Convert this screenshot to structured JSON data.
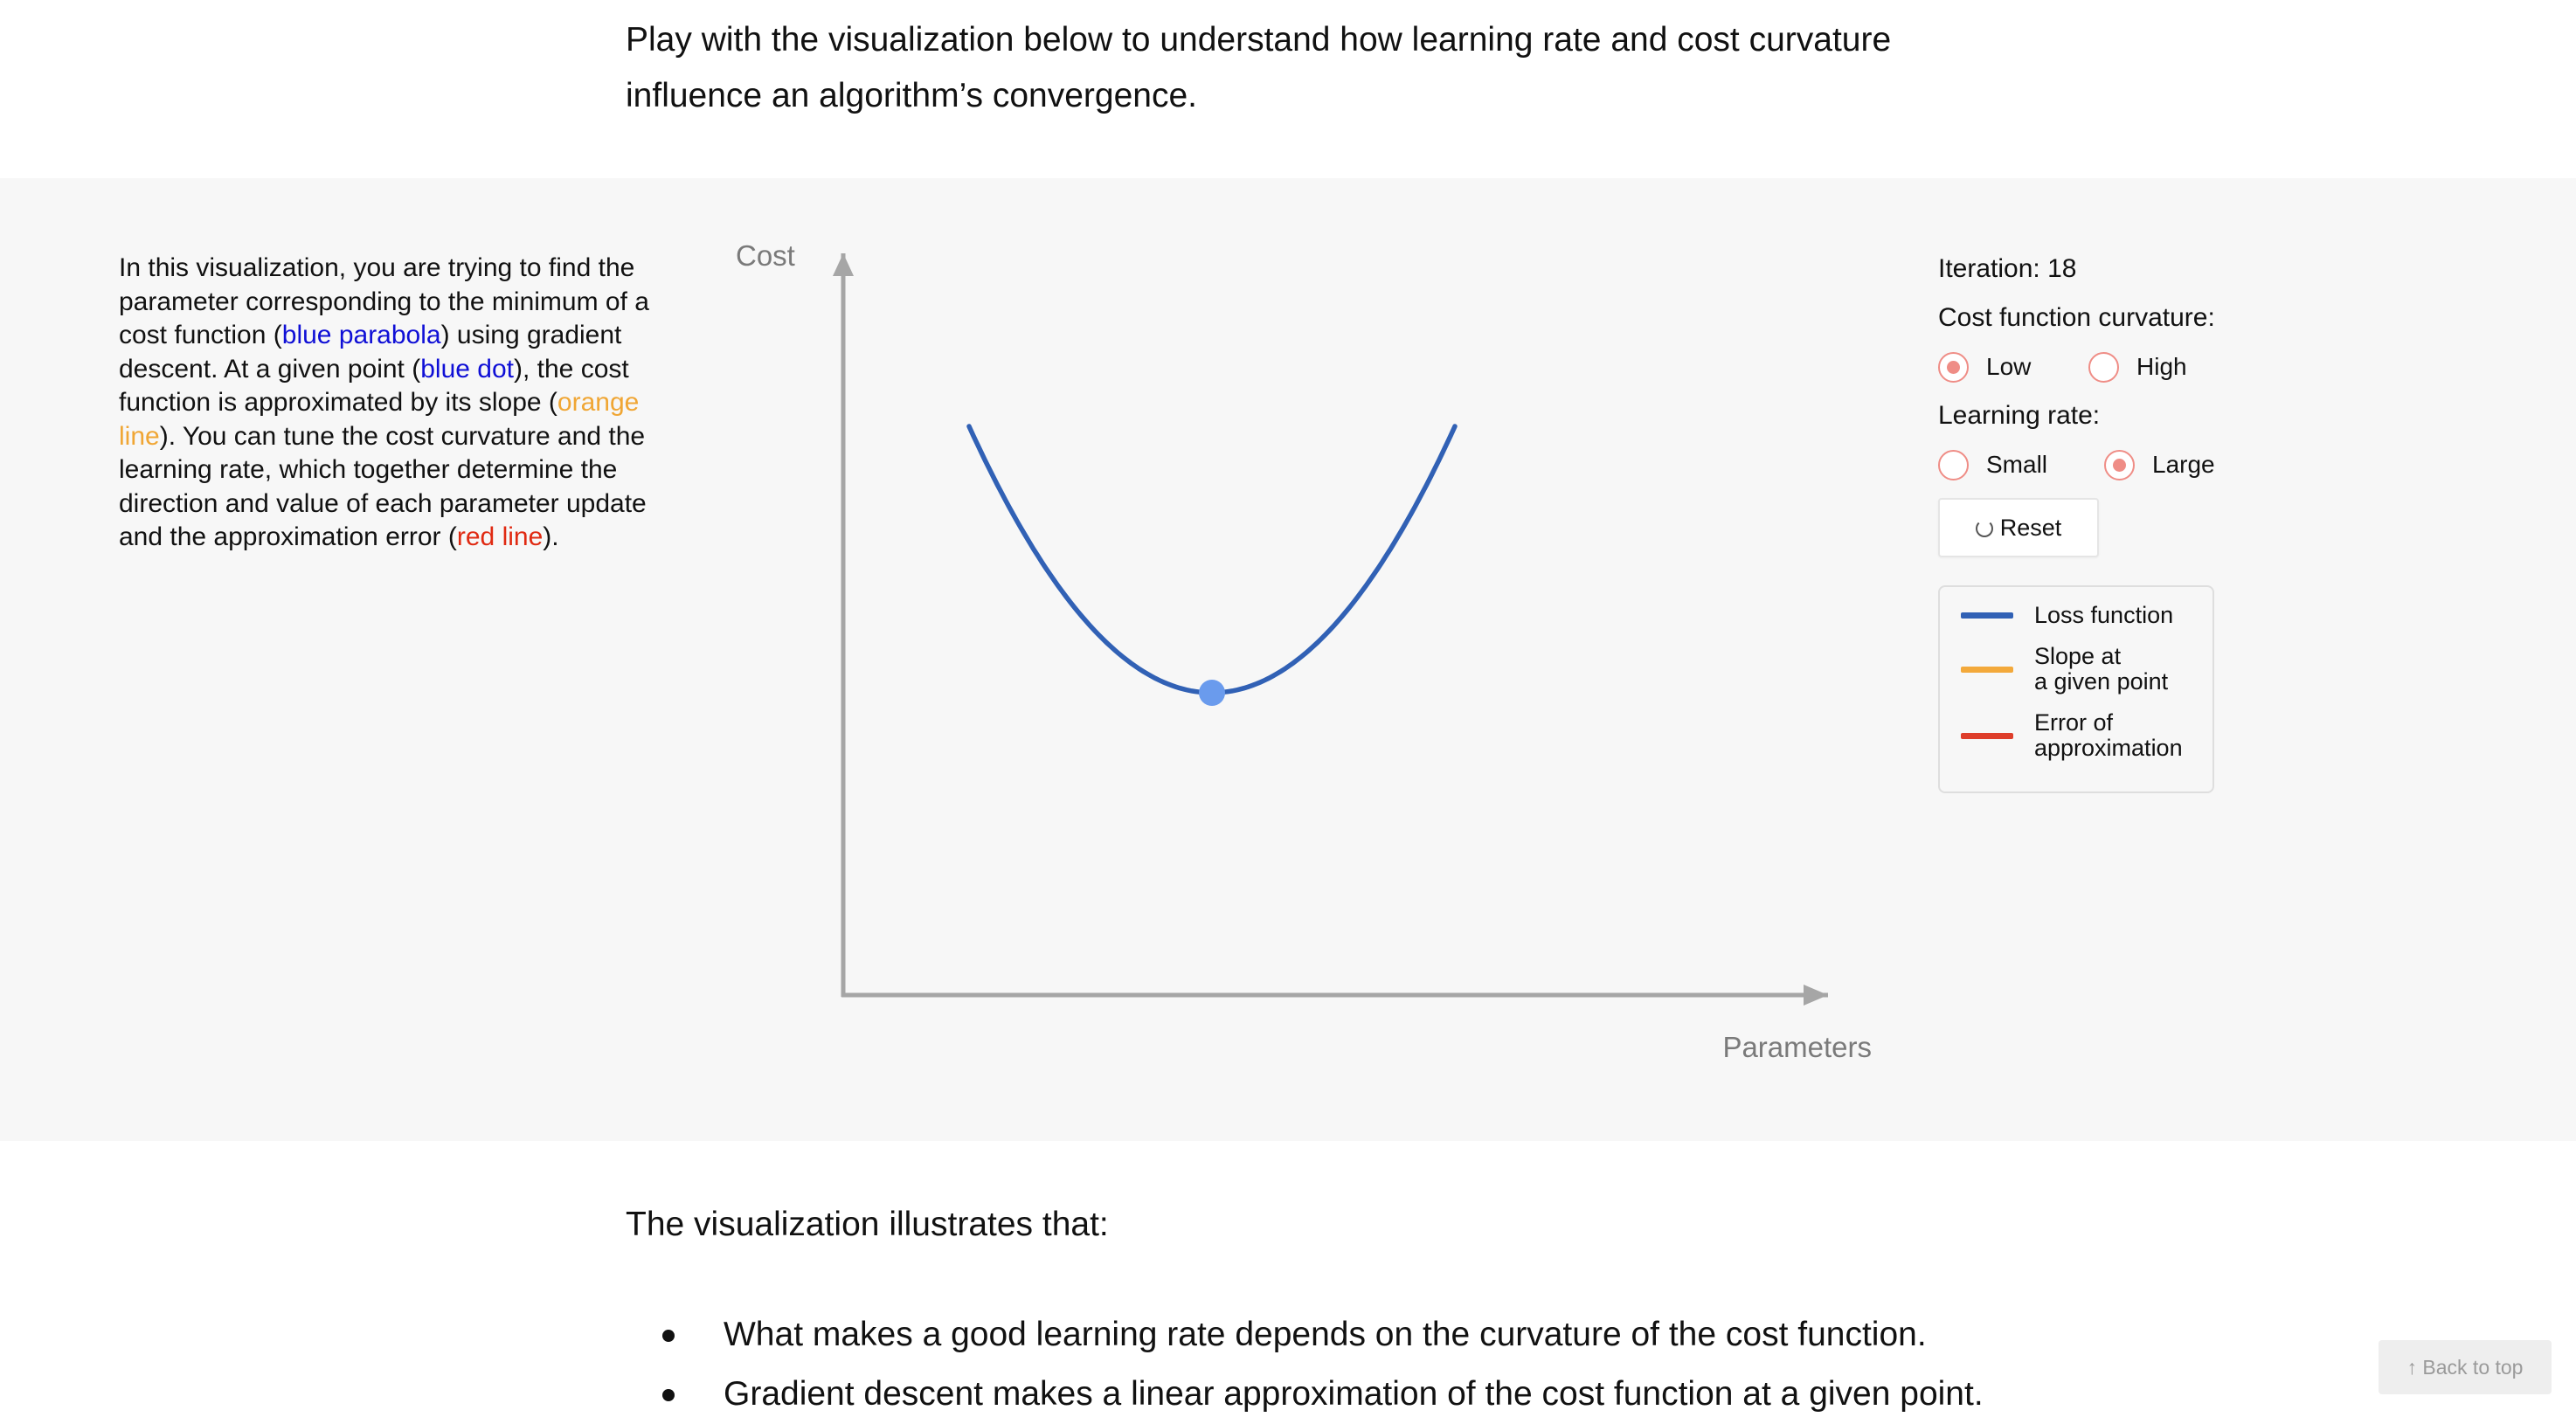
{
  "intro": {
    "line1": "Play with the visualization below to understand how learning rate and cost curvature",
    "line2": "influence an algorithm’s convergence."
  },
  "description": {
    "p1": "In this visualization, you are trying to find the parameter corresponding to the minimum of a cost function (",
    "blue_parabola": "blue parabola",
    "p2": ") using gradient descent. At a given point (",
    "blue_dot": "blue dot",
    "p3": "), the cost function is approximated by its slope (",
    "orange_line": "orange line",
    "p4": "). You can tune the cost curvature and the learning rate, which together determine the direction and value of each parameter update and the approximation error (",
    "red_line": "red line",
    "p5": ")."
  },
  "chart_data": {
    "type": "line",
    "xlabel": "Parameters",
    "ylabel": "Cost",
    "series": [
      {
        "name": "Loss function",
        "x": [
          -1.0,
          -0.75,
          -0.5,
          -0.25,
          0.0,
          0.25,
          0.5,
          0.75,
          1.0
        ],
        "y": [
          1.0,
          0.5625,
          0.25,
          0.0625,
          0.0,
          0.0625,
          0.25,
          0.5625,
          1.0
        ]
      }
    ],
    "current_point": {
      "x": 0.0,
      "y": 0.0
    }
  },
  "controls": {
    "iteration_label": "Iteration: 18",
    "curvature_label": "Cost function curvature:",
    "curvature_options": [
      {
        "label": "Low",
        "checked": true
      },
      {
        "label": "High",
        "checked": false
      }
    ],
    "learning_rate_label": "Learning rate:",
    "learning_rate_options": [
      {
        "label": "Small",
        "checked": false
      },
      {
        "label": "Large",
        "checked": true
      }
    ],
    "reset_label": "Reset",
    "reset_icon": "refresh-icon"
  },
  "legend": {
    "items": [
      {
        "line1": "Loss function",
        "line2": "",
        "color": "#3161b5"
      },
      {
        "line1": "Slope at",
        "line2": "a given point",
        "color": "#f3a93b"
      },
      {
        "line1": "Error of",
        "line2": "approximation",
        "color": "#de3e2b"
      }
    ]
  },
  "colors": {
    "loss_curve": "#3161b5",
    "current_point": "#6a9bed",
    "axis": "#a6a6a6",
    "radio_accent": "#ef8d86",
    "band_background": "#f7f7f7"
  },
  "conclusion": {
    "title": "The visualization illustrates that:",
    "bullets": [
      "What makes a good learning rate depends on the curvature of the cost function.",
      "Gradient descent makes a linear approximation of the cost function at a given point."
    ]
  },
  "back_to_top": "↑ Back to top"
}
